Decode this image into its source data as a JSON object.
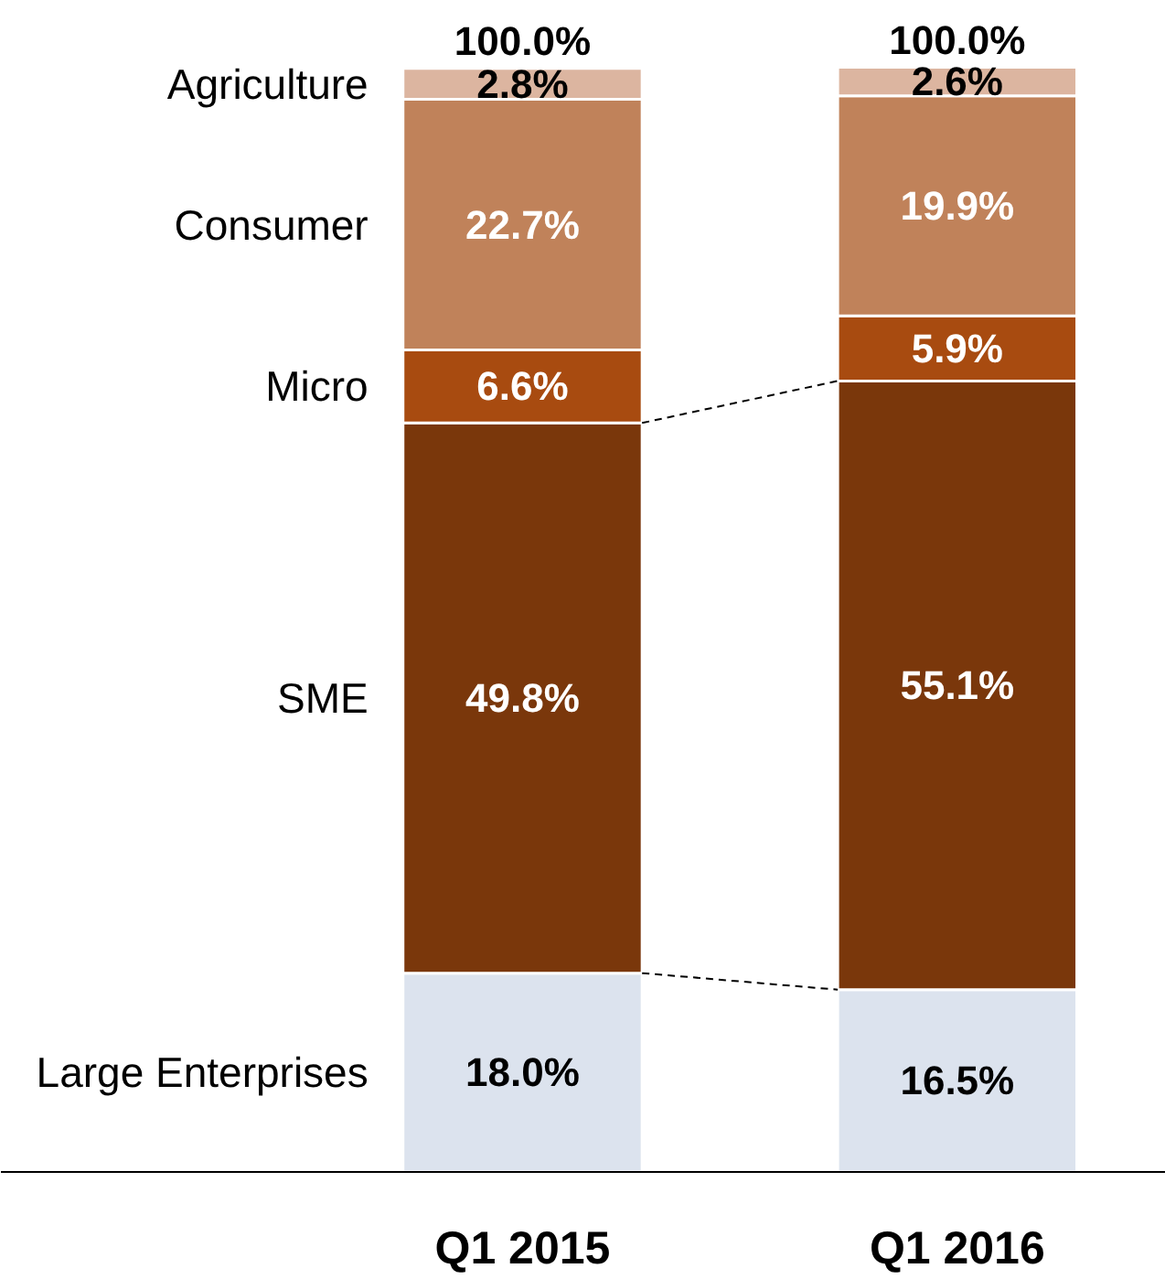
{
  "chart_data": {
    "type": "bar",
    "stacked": true,
    "categories": [
      "Q1 2015",
      "Q1 2016"
    ],
    "series": [
      {
        "name": "Large Enterprises",
        "color": "#dce3ee",
        "values": [
          18.0,
          16.5
        ],
        "value_labels": [
          "18.0%",
          "16.5%"
        ]
      },
      {
        "name": "SME",
        "color": "#7a370b",
        "values": [
          49.8,
          55.1
        ],
        "value_labels": [
          "49.8%",
          "55.1%"
        ]
      },
      {
        "name": "Micro",
        "color": "#a84b10",
        "values": [
          6.6,
          5.9
        ],
        "value_labels": [
          "6.6%",
          "5.9%"
        ]
      },
      {
        "name": "Consumer",
        "color": "#c0825a",
        "values": [
          22.7,
          19.9
        ],
        "value_labels": [
          "22.7%",
          "19.9%"
        ]
      },
      {
        "name": "Agriculture",
        "color": "#dcb5a0",
        "values": [
          2.8,
          2.6
        ],
        "value_labels": [
          "2.8%",
          "2.6%"
        ]
      }
    ],
    "totals": [
      "100.0%",
      "100.0%"
    ]
  }
}
